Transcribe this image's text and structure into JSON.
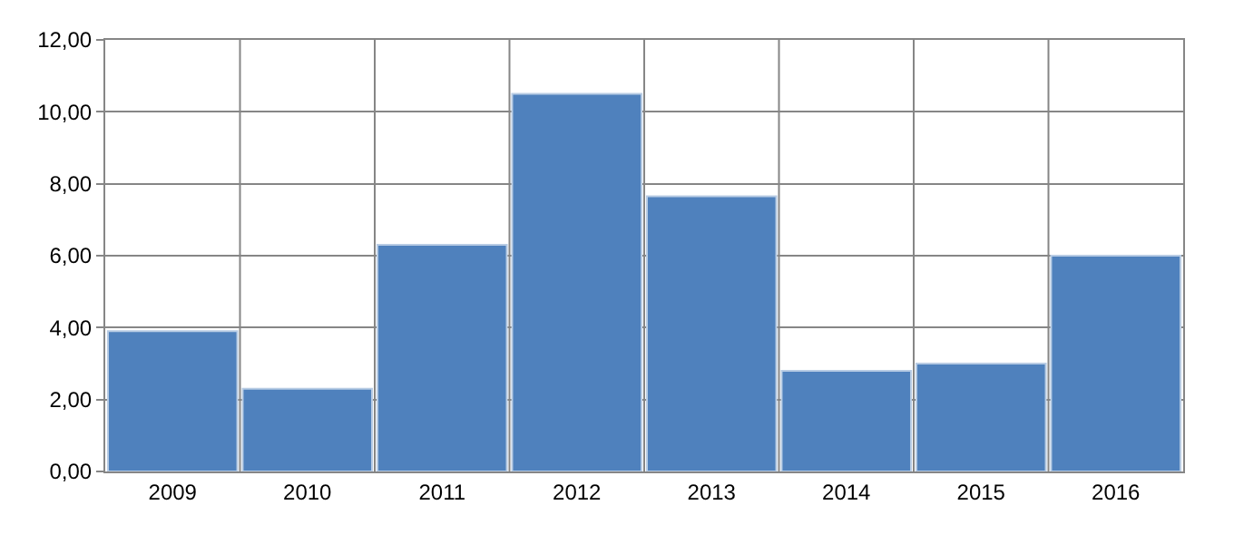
{
  "chart_data": {
    "type": "bar",
    "categories": [
      "2009",
      "2010",
      "2011",
      "2012",
      "2013",
      "2014",
      "2015",
      "2016"
    ],
    "values": [
      3.9,
      2.3,
      6.3,
      10.5,
      7.65,
      2.8,
      3.0,
      6.0
    ],
    "color": "#4f81bd",
    "ylim": [
      0,
      12
    ],
    "yticks": [
      {
        "value": 0,
        "label": "0,00"
      },
      {
        "value": 2,
        "label": "2,00"
      },
      {
        "value": 4,
        "label": "4,00"
      },
      {
        "value": 6,
        "label": "6,00"
      },
      {
        "value": 8,
        "label": "8,00"
      },
      {
        "value": 10,
        "label": "10,00"
      },
      {
        "value": 12,
        "label": "12,00"
      }
    ],
    "grid": true
  }
}
